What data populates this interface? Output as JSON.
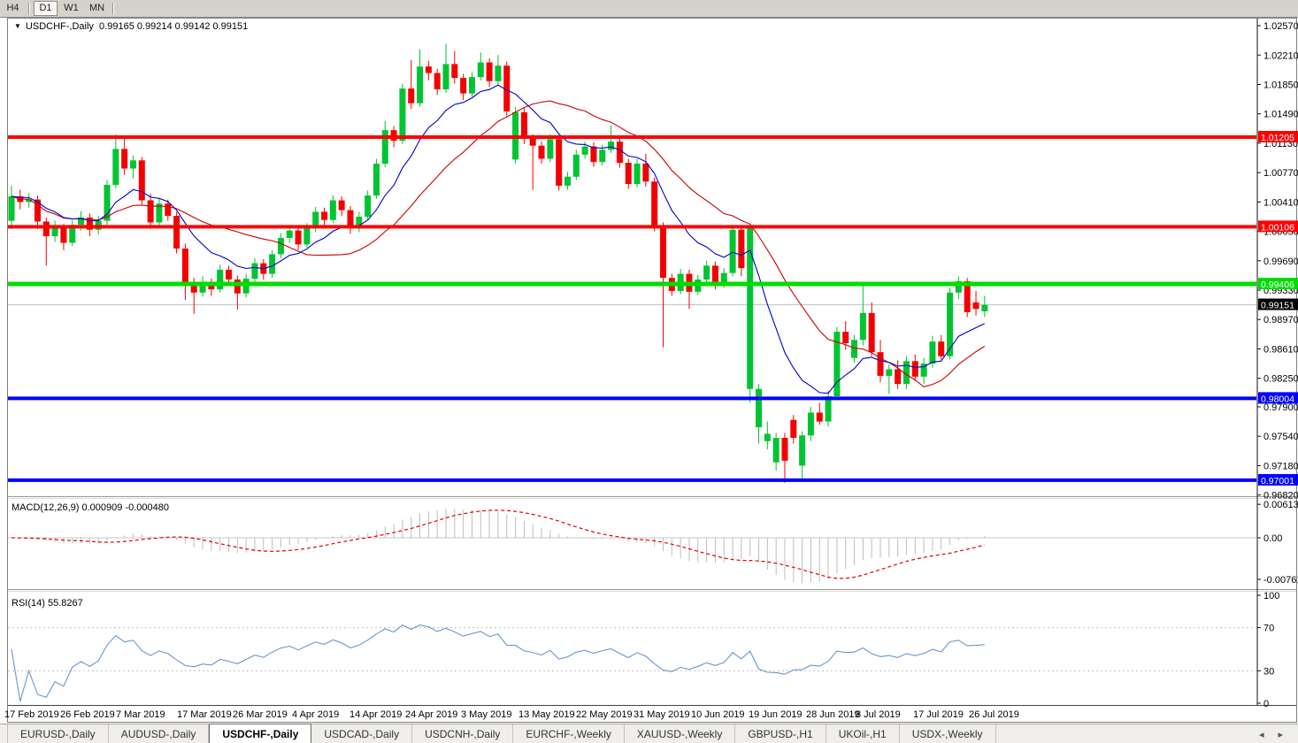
{
  "toolbar": {
    "periods": [
      {
        "label": "H4",
        "active": false
      },
      {
        "label": "D1",
        "active": true
      },
      {
        "label": "W1",
        "active": false
      },
      {
        "label": "MN",
        "active": false
      }
    ]
  },
  "icons": {
    "dropdown": "▼",
    "tab_scroll_left": "◂",
    "tab_scroll_right": "▸"
  },
  "chart": {
    "title_symbol": "USDCHF-,Daily",
    "title_quotes": "0.99165 0.99214 0.99142 0.99151"
  },
  "chart_data": {
    "type": "candlestick",
    "symbol": "USDCHF-",
    "timeframe": "Daily",
    "current_bid": 0.99151,
    "current_bid_label": "0.99151",
    "price_ticks": [
      "1.02570",
      "1.02210",
      "1.01850",
      "1.01490",
      "1.01130",
      "1.00770",
      "1.00410",
      "1.00050",
      "0.99690",
      "0.99330",
      "0.98970",
      "0.98610",
      "0.98250",
      "0.97900",
      "0.97540",
      "0.97180",
      "0.96820"
    ],
    "levels": [
      {
        "value": 1.01205,
        "label": "1.01205",
        "color": "#ff0000",
        "width": 4
      },
      {
        "value": 1.00106,
        "label": "1.00106",
        "color": "#ff0000",
        "width": 4
      },
      {
        "value": 0.99406,
        "label": "0.99406",
        "color": "#00dd00",
        "width": 5
      },
      {
        "value": 0.98004,
        "label": "0.98004",
        "color": "#0000ff",
        "width": 4
      },
      {
        "value": 0.97001,
        "label": "0.97001",
        "color": "#0000ff",
        "width": 4
      }
    ],
    "x_dates": [
      "17 Feb 2019",
      "26 Feb 2019",
      "7 Mar 2019",
      "17 Mar 2019",
      "26 Mar 2019",
      "4 Apr 2019",
      "14 Apr 2019",
      "24 Apr 2019",
      "3 May 2019",
      "13 May 2019",
      "22 May 2019",
      "31 May 2019",
      "10 Jun 2019",
      "19 Jun 2019",
      "28 Jun 2019",
      "8 Jul 2019",
      "17 Jul 2019",
      "26 Jul 2019"
    ],
    "candles": [
      [
        1.0018,
        1.0061,
        1.0008,
        1.0048
      ],
      [
        1.0048,
        1.0056,
        1.0032,
        1.0041
      ],
      [
        1.0041,
        1.0052,
        1.0034,
        1.0044
      ],
      [
        1.0044,
        1.0049,
        1.0008,
        1.0017
      ],
      [
        1.0017,
        1.0022,
        0.9963,
        0.9999
      ],
      [
        0.9999,
        1.0018,
        0.9992,
        1.0009
      ],
      [
        1.0009,
        1.0014,
        0.9982,
        0.9991
      ],
      [
        0.9991,
        1.0019,
        0.9987,
        1.0013
      ],
      [
        1.0013,
        1.003,
        1.0006,
        1.0022
      ],
      [
        1.0022,
        1.0027,
        0.9999,
        1.0007
      ],
      [
        1.0007,
        1.0024,
        1.0001,
        1.0018
      ],
      [
        1.0018,
        1.0068,
        1.0013,
        1.0062
      ],
      [
        1.0062,
        1.0124,
        1.0058,
        1.0106
      ],
      [
        1.0106,
        1.012,
        1.0074,
        1.0082
      ],
      [
        1.0082,
        1.0098,
        1.007,
        1.0092
      ],
      [
        1.0092,
        1.0096,
        1.0038,
        1.0043
      ],
      [
        1.0043,
        1.0051,
        1.0008,
        1.0016
      ],
      [
        1.0016,
        1.0045,
        1.0011,
        1.0039
      ],
      [
        1.0039,
        1.0044,
        1.0018,
        1.0024
      ],
      [
        1.0024,
        1.0029,
        0.9978,
        0.9984
      ],
      [
        0.9984,
        0.999,
        0.9921,
        0.9941
      ],
      [
        0.9941,
        0.9948,
        0.9904,
        0.993
      ],
      [
        0.993,
        0.995,
        0.9925,
        0.9942
      ],
      [
        0.9942,
        0.9947,
        0.9926,
        0.9934
      ],
      [
        0.9934,
        0.9964,
        0.993,
        0.9958
      ],
      [
        0.9958,
        0.9963,
        0.994,
        0.9946
      ],
      [
        0.9946,
        0.9951,
        0.9909,
        0.9929
      ],
      [
        0.9929,
        0.9953,
        0.9924,
        0.9947
      ],
      [
        0.9947,
        0.9972,
        0.9942,
        0.9966
      ],
      [
        0.9966,
        0.9971,
        0.9946,
        0.9953
      ],
      [
        0.9953,
        0.9982,
        0.9948,
        0.9977
      ],
      [
        0.9977,
        1.0003,
        0.9972,
        0.9997
      ],
      [
        0.9997,
        1.0012,
        0.9991,
        1.0006
      ],
      [
        1.0006,
        1.0011,
        0.9982,
        0.9989
      ],
      [
        0.9989,
        1.0015,
        0.9985,
        1.0009
      ],
      [
        1.0009,
        1.0035,
        1.0004,
        1.0029
      ],
      [
        1.0029,
        1.0034,
        1.0011,
        1.0019
      ],
      [
        1.0019,
        1.0049,
        1.0015,
        1.0043
      ],
      [
        1.0043,
        1.0048,
        1.0024,
        1.0031
      ],
      [
        1.0031,
        1.0036,
        1.0002,
        1.0009
      ],
      [
        1.0009,
        1.0029,
        1.0004,
        1.0023
      ],
      [
        1.0023,
        1.0055,
        1.0019,
        1.0049
      ],
      [
        1.0049,
        1.0094,
        1.0045,
        1.0088
      ],
      [
        1.0088,
        1.014,
        1.0084,
        1.0129
      ],
      [
        1.0129,
        1.0134,
        1.0108,
        1.0116
      ],
      [
        1.0116,
        1.0186,
        1.0112,
        1.018
      ],
      [
        1.018,
        1.0215,
        1.0155,
        1.0162
      ],
      [
        1.0162,
        1.0228,
        1.0158,
        1.0207
      ],
      [
        1.0207,
        1.0214,
        1.019,
        1.0199
      ],
      [
        1.0199,
        1.0204,
        1.0172,
        1.0179
      ],
      [
        1.0179,
        1.0235,
        1.0175,
        1.021
      ],
      [
        1.021,
        1.0226,
        1.0186,
        1.0193
      ],
      [
        1.0193,
        1.0198,
        1.0166,
        1.0174
      ],
      [
        1.0174,
        1.02,
        1.017,
        1.0194
      ],
      [
        1.0194,
        1.0224,
        1.019,
        1.0212
      ],
      [
        1.0212,
        1.0217,
        1.0182,
        1.0189
      ],
      [
        1.0189,
        1.0221,
        1.0184,
        1.0208
      ],
      [
        1.0208,
        1.0213,
        1.0146,
        1.0152
      ],
      [
        1.0093,
        1.0157,
        1.0088,
        1.0151
      ],
      [
        1.0151,
        1.0156,
        1.0112,
        1.0119
      ],
      [
        1.0119,
        1.0124,
        1.0056,
        1.011
      ],
      [
        1.011,
        1.0115,
        1.0088,
        1.0094
      ],
      [
        1.0094,
        1.0124,
        1.009,
        1.0118
      ],
      [
        1.0118,
        1.0123,
        1.0055,
        1.0061
      ],
      [
        1.0061,
        1.0078,
        1.0056,
        1.0072
      ],
      [
        1.0072,
        1.0105,
        1.0068,
        1.0099
      ],
      [
        1.0099,
        1.0115,
        1.0094,
        1.0109
      ],
      [
        1.0109,
        1.0114,
        1.0084,
        1.009
      ],
      [
        1.009,
        1.0111,
        1.0086,
        1.0105
      ],
      [
        1.0105,
        1.0135,
        1.0101,
        1.0115
      ],
      [
        1.0115,
        1.012,
        1.0083,
        1.0089
      ],
      [
        1.0089,
        1.0094,
        1.0057,
        1.0063
      ],
      [
        1.0063,
        1.0094,
        1.0059,
        1.0088
      ],
      [
        1.0088,
        1.01,
        1.006,
        1.0066
      ],
      [
        1.0066,
        1.0071,
        1.0005,
        1.0011
      ],
      [
        1.0011,
        1.0016,
        0.9863,
        0.9948
      ],
      [
        0.9948,
        0.9953,
        0.9926,
        0.9932
      ],
      [
        0.9932,
        0.9959,
        0.9928,
        0.9953
      ],
      [
        0.9953,
        0.9958,
        0.991,
        0.9931
      ],
      [
        0.9931,
        0.9952,
        0.9927,
        0.9946
      ],
      [
        0.9946,
        0.9969,
        0.9942,
        0.9963
      ],
      [
        0.9963,
        0.9968,
        0.9934,
        0.994
      ],
      [
        0.994,
        0.996,
        0.9936,
        0.9954
      ],
      [
        0.9954,
        1.0013,
        0.995,
        1.0007
      ],
      [
        1.0007,
        1.0013,
        0.995,
        0.996
      ],
      [
        0.9812,
        1.0012,
        0.9795,
        1.0009
      ],
      [
        0.9765,
        0.9818,
        0.9745,
        0.9812
      ],
      [
        0.9748,
        0.9772,
        0.9738,
        0.9757
      ],
      [
        0.9722,
        0.9758,
        0.9712,
        0.9752
      ],
      [
        0.9752,
        0.9758,
        0.9697,
        0.9724
      ],
      [
        0.9774,
        0.978,
        0.9745,
        0.9752
      ],
      [
        0.9718,
        0.976,
        0.97,
        0.9755
      ],
      [
        0.9755,
        0.979,
        0.9748,
        0.9783
      ],
      [
        0.9783,
        0.9795,
        0.9768,
        0.9772
      ],
      [
        0.9772,
        0.981,
        0.9766,
        0.9803
      ],
      [
        0.9803,
        0.9888,
        0.9798,
        0.9882
      ],
      [
        0.9882,
        0.9895,
        0.986,
        0.9868
      ],
      [
        0.985,
        0.9878,
        0.9844,
        0.9872
      ],
      [
        0.9872,
        0.9941,
        0.9865,
        0.9905
      ],
      [
        0.9905,
        0.9918,
        0.9852,
        0.9857
      ],
      [
        0.9857,
        0.9872,
        0.982,
        0.9828
      ],
      [
        0.9828,
        0.9842,
        0.9806,
        0.9836
      ],
      [
        0.9836,
        0.9847,
        0.9812,
        0.9818
      ],
      [
        0.9818,
        0.9852,
        0.9812,
        0.9846
      ],
      [
        0.9846,
        0.9854,
        0.9822,
        0.9827
      ],
      [
        0.9827,
        0.985,
        0.9818,
        0.9843
      ],
      [
        0.9843,
        0.9877,
        0.9838,
        0.987
      ],
      [
        0.987,
        0.9878,
        0.9848,
        0.9852
      ],
      [
        0.9852,
        0.9936,
        0.9848,
        0.993
      ],
      [
        0.993,
        0.995,
        0.9922,
        0.9944
      ],
      [
        0.9944,
        0.9948,
        0.99,
        0.9906
      ],
      [
        0.9918,
        0.9932,
        0.9902,
        0.991
      ],
      [
        0.9907,
        0.9926,
        0.99,
        0.9915
      ]
    ],
    "moving_averages": [
      {
        "name": "fast",
        "color": "#0000c8"
      },
      {
        "name": "slow",
        "color": "#cc0000"
      }
    ],
    "indicators": {
      "macd": {
        "label": "MACD(12,26,9)",
        "value_main": "0.000909",
        "value_signal": "-0.000480",
        "axis_ticks": [
          "0.00613",
          "0.00",
          "-0.007612"
        ],
        "hist_color": "#bdbdbd",
        "signal_color": "#e60000"
      },
      "rsi": {
        "label": "RSI(14)",
        "value": "55.8267",
        "axis_ticks": [
          "100",
          "70",
          "30",
          "0"
        ],
        "levels": [
          70,
          30
        ],
        "line_color": "#6898ce"
      }
    },
    "colors": {
      "bull": "#00c432",
      "bear": "#f40000",
      "current_price_line": "#c4c4c4",
      "current_price_label_bg": "#000000"
    }
  },
  "tabs": {
    "items": [
      {
        "label": "EURUSD-,Daily",
        "active": false
      },
      {
        "label": "AUDUSD-,Daily",
        "active": false
      },
      {
        "label": "USDCHF-,Daily",
        "active": true
      },
      {
        "label": "USDCAD-,Daily",
        "active": false
      },
      {
        "label": "USDCNH-,Daily",
        "active": false
      },
      {
        "label": "EURCHF-,Weekly",
        "active": false
      },
      {
        "label": "XAUUSD-,Weekly",
        "active": false
      },
      {
        "label": "GBPUSD-,H1",
        "active": false
      },
      {
        "label": "UKOil-,H1",
        "active": false
      },
      {
        "label": "USDX-,Weekly",
        "active": false
      }
    ]
  }
}
